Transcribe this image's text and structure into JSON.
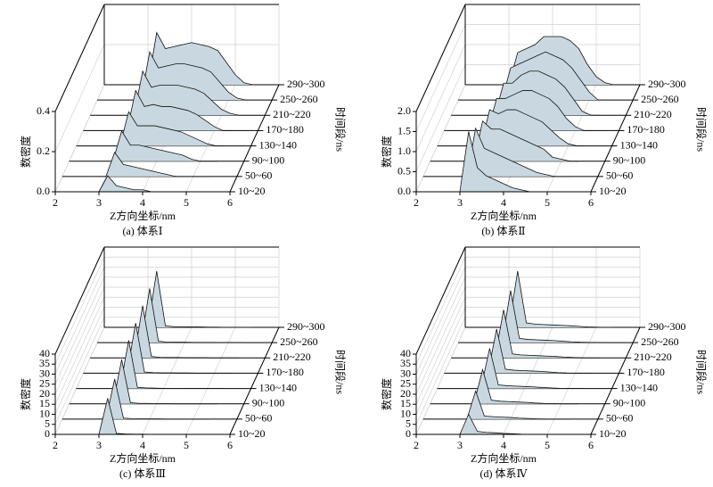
{
  "chart_data": [
    {
      "type": "waterfall",
      "caption": "(a) 体系Ⅰ",
      "xlabel": "Z方向坐标/nm",
      "ylabel": "数密度",
      "zlabel": "时间段/ns",
      "color": "#c9d8e0",
      "xlim": [
        2,
        6
      ],
      "xticks": [
        2,
        3,
        4,
        5,
        6
      ],
      "ylim": [
        0,
        0.4
      ],
      "yticks": [
        {
          "value": 0,
          "label": "0.0"
        },
        0.2,
        0.4
      ],
      "x": [
        3.0,
        3.2,
        3.4,
        3.6,
        3.8,
        4.0,
        4.2,
        4.4,
        4.6,
        4.8,
        5.0,
        5.2,
        5.4
      ],
      "series": [
        {
          "name": "10~20",
          "values": [
            0,
            0.08,
            0.03,
            0.02,
            0.01,
            0.01,
            0,
            0,
            0,
            0,
            0,
            0,
            0
          ]
        },
        {
          "name": "50~60",
          "values": [
            0,
            0.12,
            0.06,
            0.05,
            0.04,
            0.03,
            0.02,
            0.01,
            0,
            0,
            0,
            0,
            0
          ]
        },
        {
          "name": "90~100",
          "values": [
            0,
            0.15,
            0.08,
            0.08,
            0.07,
            0.06,
            0.05,
            0.04,
            0.03,
            0.01,
            0,
            0,
            0
          ]
        },
        {
          "name": "130~140",
          "values": [
            0,
            0.17,
            0.1,
            0.1,
            0.1,
            0.09,
            0.08,
            0.07,
            0.05,
            0.03,
            0.01,
            0,
            0
          ]
        },
        {
          "name": "170~180",
          "values": [
            0,
            0.2,
            0.12,
            0.13,
            0.12,
            0.12,
            0.11,
            0.1,
            0.08,
            0.05,
            0.02,
            0,
            0
          ]
        },
        {
          "name": "210~220",
          "values": [
            0,
            0.22,
            0.14,
            0.15,
            0.15,
            0.15,
            0.14,
            0.13,
            0.11,
            0.07,
            0.03,
            0.01,
            0
          ]
        },
        {
          "name": "250~260",
          "values": [
            0,
            0.24,
            0.16,
            0.17,
            0.18,
            0.18,
            0.17,
            0.16,
            0.14,
            0.09,
            0.04,
            0.01,
            0
          ]
        },
        {
          "name": "290~300",
          "values": [
            0,
            0.26,
            0.18,
            0.19,
            0.2,
            0.21,
            0.2,
            0.19,
            0.17,
            0.11,
            0.05,
            0.01,
            0
          ]
        }
      ]
    },
    {
      "type": "waterfall",
      "caption": "(b) 体系Ⅱ",
      "xlabel": "Z方向坐标/nm",
      "ylabel": "数密度",
      "zlabel": "时间段/ns",
      "color": "#c9d8e0",
      "xlim": [
        2,
        6
      ],
      "xticks": [
        2,
        3,
        4,
        5,
        6
      ],
      "ylim": [
        0,
        2
      ],
      "yticks": [
        {
          "value": 0,
          "label": "0.0"
        },
        0.5,
        {
          "value": 1,
          "label": "1.0"
        },
        1.5,
        {
          "value": 2,
          "label": "2.0"
        }
      ],
      "x": [
        3.0,
        3.2,
        3.4,
        3.6,
        3.8,
        4.0,
        4.2,
        4.4,
        4.6,
        4.8,
        5.0,
        5.2,
        5.4
      ],
      "series": [
        {
          "name": "10~20",
          "values": [
            0,
            1.5,
            0.6,
            0.4,
            0.3,
            0.2,
            0.1,
            0.05,
            0,
            0,
            0,
            0,
            0
          ]
        },
        {
          "name": "50~60",
          "values": [
            0,
            1.2,
            0.7,
            0.6,
            0.5,
            0.4,
            0.3,
            0.2,
            0.1,
            0.05,
            0,
            0,
            0
          ]
        },
        {
          "name": "90~100",
          "values": [
            0,
            1.0,
            0.8,
            0.8,
            0.7,
            0.6,
            0.5,
            0.4,
            0.3,
            0.1,
            0.05,
            0,
            0
          ]
        },
        {
          "name": "130~140",
          "values": [
            0,
            0.9,
            0.8,
            0.9,
            0.9,
            0.8,
            0.7,
            0.6,
            0.4,
            0.2,
            0.05,
            0,
            0
          ]
        },
        {
          "name": "170~180",
          "values": [
            0,
            0.8,
            0.8,
            0.9,
            1.0,
            1.0,
            0.9,
            0.8,
            0.6,
            0.3,
            0.1,
            0,
            0
          ]
        },
        {
          "name": "210~220",
          "values": [
            0,
            0.8,
            0.8,
            1.0,
            1.1,
            1.1,
            1.0,
            0.9,
            0.7,
            0.4,
            0.1,
            0,
            0
          ]
        },
        {
          "name": "250~260",
          "values": [
            0,
            0.8,
            0.9,
            1.0,
            1.1,
            1.2,
            1.1,
            1.0,
            0.8,
            0.5,
            0.2,
            0,
            0
          ]
        },
        {
          "name": "290~300",
          "values": [
            0,
            0.8,
            0.9,
            1.0,
            1.2,
            1.2,
            1.2,
            1.1,
            0.9,
            0.5,
            0.2,
            0.05,
            0
          ]
        }
      ]
    },
    {
      "type": "waterfall",
      "caption": "(c) 体系Ⅲ",
      "xlabel": "Z方向坐标/nm",
      "ylabel": "数密度",
      "zlabel": "时间段/ns",
      "color": "#c9d8e0",
      "xlim": [
        2,
        6
      ],
      "xticks": [
        2,
        3,
        4,
        5,
        6
      ],
      "ylim": [
        0,
        40
      ],
      "yticks": [
        0,
        5,
        10,
        15,
        20,
        25,
        30,
        35,
        40
      ],
      "x": [
        3.0,
        3.2,
        3.4,
        3.6,
        3.8,
        4.0,
        4.2,
        4.4,
        4.6,
        4.8,
        5.0,
        5.2,
        5.4
      ],
      "series": [
        {
          "name": "10~20",
          "values": [
            0,
            18,
            0.5,
            0.2,
            0.1,
            0.1,
            0,
            0,
            0,
            0,
            0,
            0,
            0
          ]
        },
        {
          "name": "50~60",
          "values": [
            0,
            20,
            0.5,
            0.2,
            0.1,
            0.1,
            0.1,
            0,
            0,
            0,
            0,
            0,
            0
          ]
        },
        {
          "name": "90~100",
          "values": [
            0,
            22,
            0.6,
            0.2,
            0.2,
            0.1,
            0.1,
            0,
            0,
            0,
            0,
            0,
            0
          ]
        },
        {
          "name": "130~140",
          "values": [
            0,
            24,
            0.6,
            0.3,
            0.2,
            0.1,
            0.1,
            0.1,
            0,
            0,
            0,
            0,
            0
          ]
        },
        {
          "name": "170~180",
          "values": [
            0,
            25,
            0.6,
            0.3,
            0.2,
            0.2,
            0.1,
            0.1,
            0,
            0,
            0,
            0,
            0
          ]
        },
        {
          "name": "210~220",
          "values": [
            0,
            26,
            0.7,
            0.3,
            0.2,
            0.2,
            0.1,
            0.1,
            0.1,
            0,
            0,
            0,
            0
          ]
        },
        {
          "name": "250~260",
          "values": [
            0,
            27,
            0.7,
            0.3,
            0.2,
            0.2,
            0.1,
            0.1,
            0.1,
            0,
            0,
            0,
            0
          ]
        },
        {
          "name": "290~300",
          "values": [
            0,
            28,
            0.7,
            0.3,
            0.3,
            0.2,
            0.2,
            0.1,
            0.1,
            0,
            0,
            0,
            0
          ]
        }
      ]
    },
    {
      "type": "waterfall",
      "caption": "(d) 体系Ⅳ",
      "xlabel": "Z方向坐标/nm",
      "ylabel": "数密度",
      "zlabel": "时间段/ns",
      "color": "#c9d8e0",
      "xlim": [
        2,
        6
      ],
      "xticks": [
        2,
        3,
        4,
        5,
        6
      ],
      "ylim": [
        0,
        40
      ],
      "yticks": [
        0,
        5,
        10,
        15,
        20,
        25,
        30,
        35,
        40
      ],
      "x": [
        3.0,
        3.2,
        3.4,
        3.6,
        3.8,
        4.0,
        4.2,
        4.4,
        4.6,
        4.8,
        5.0,
        5.2,
        5.4
      ],
      "series": [
        {
          "name": "10~20",
          "values": [
            0,
            10,
            1.5,
            1.0,
            0.8,
            0.5,
            0.3,
            0.1,
            0,
            0,
            0,
            0,
            0
          ]
        },
        {
          "name": "50~60",
          "values": [
            0,
            14,
            1.5,
            1.2,
            1.0,
            0.8,
            0.5,
            0.3,
            0.1,
            0,
            0,
            0,
            0
          ]
        },
        {
          "name": "90~100",
          "values": [
            0,
            17,
            1.8,
            1.3,
            1.1,
            0.9,
            0.7,
            0.4,
            0.2,
            0.1,
            0,
            0,
            0
          ]
        },
        {
          "name": "130~140",
          "values": [
            0,
            20,
            1.8,
            1.4,
            1.2,
            1.0,
            0.8,
            0.5,
            0.3,
            0.1,
            0,
            0,
            0
          ]
        },
        {
          "name": "170~180",
          "values": [
            0,
            22,
            2.0,
            1.5,
            1.3,
            1.1,
            0.9,
            0.6,
            0.3,
            0.1,
            0,
            0,
            0
          ]
        },
        {
          "name": "210~220",
          "values": [
            0,
            24,
            2.0,
            1.5,
            1.3,
            1.1,
            0.9,
            0.7,
            0.4,
            0.2,
            0,
            0,
            0
          ]
        },
        {
          "name": "250~260",
          "values": [
            0,
            26,
            2.1,
            1.6,
            1.4,
            1.2,
            1.0,
            0.7,
            0.4,
            0.2,
            0.1,
            0,
            0
          ]
        },
        {
          "name": "290~300",
          "values": [
            0,
            28,
            2.2,
            1.6,
            1.4,
            1.2,
            1.0,
            0.8,
            0.5,
            0.2,
            0.1,
            0,
            0
          ]
        }
      ]
    }
  ]
}
